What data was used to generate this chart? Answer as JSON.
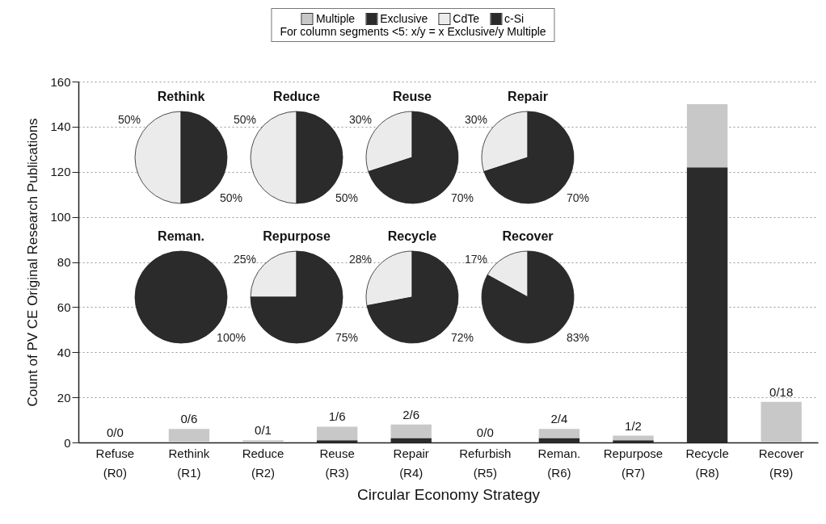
{
  "chart_data": [
    {
      "type": "bar",
      "stacked": true,
      "xlabel": "Circular Economy Strategy",
      "ylabel": "Count of PV CE Original Research Publications",
      "categories": [
        "Refuse (R0)",
        "Rethink (R1)",
        "Reduce (R2)",
        "Reuse (R3)",
        "Repair (R4)",
        "Refurbish (R5)",
        "Reman. (R6)",
        "Repurpose (R7)",
        "Recycle (R8)",
        "Recover (R9)"
      ],
      "series": [
        {
          "name": "Exclusive",
          "color": "#2b2b2b",
          "values": [
            0,
            0,
            0,
            1,
            2,
            0,
            2,
            1,
            122,
            0
          ]
        },
        {
          "name": "Multiple",
          "color": "#c8c8c8",
          "values": [
            0,
            6,
            1,
            6,
            6,
            0,
            4,
            2,
            28,
            18
          ]
        }
      ],
      "ylim": [
        0,
        160
      ],
      "yticks": [
        0,
        20,
        40,
        60,
        80,
        100,
        120,
        140,
        160
      ],
      "grid": "y",
      "legend": "top",
      "annotations": [
        "For column segments <5: x/y = x Exclusive/y Multiple",
        {
          "text": "0/0",
          "x": "Refuse (R0)",
          "y": 0
        },
        {
          "text": "0/6",
          "x": "Rethink (R1)",
          "y": 6
        },
        {
          "text": "0/1",
          "x": "Reduce (R2)",
          "y": 1
        },
        {
          "text": "1/6",
          "x": "Reuse (R3)",
          "y": 7
        },
        {
          "text": "2/6",
          "x": "Repair (R4)",
          "y": 8
        },
        {
          "text": "0/0",
          "x": "Refurbish (R5)",
          "y": 0
        },
        {
          "text": "2/4",
          "x": "Reman. (R6)",
          "y": 6
        },
        {
          "text": "1/2",
          "x": "Repurpose (R7)",
          "y": 3
        },
        {
          "text": "0/18",
          "x": "Recover (R9)",
          "y": 18
        }
      ]
    },
    {
      "type": "pie",
      "title": "Rethink",
      "categories": [
        "CdTe",
        "c-Si"
      ],
      "values": [
        50,
        50
      ],
      "value_labels": [
        "50%",
        "50%"
      ],
      "colors": [
        "#ebebeb",
        "#2b2b2b"
      ],
      "legend": "top"
    },
    {
      "type": "pie",
      "title": "Reduce",
      "categories": [
        null,
        null
      ],
      "values": [
        50,
        50
      ],
      "value_labels": [
        "50%",
        "50%"
      ],
      "colors": [
        "#ebebeb",
        "#2b2b2b"
      ]
    },
    {
      "type": "pie",
      "title": "Reuse",
      "categories": [
        null,
        null
      ],
      "values": [
        30,
        70
      ],
      "value_labels": [
        "30%",
        "70%"
      ],
      "colors": [
        "#ebebeb",
        "#2b2b2b"
      ]
    },
    {
      "type": "pie",
      "title": "Repair",
      "categories": [
        null,
        null
      ],
      "values": [
        30,
        70
      ],
      "value_labels": [
        "30%",
        "70%"
      ],
      "colors": [
        "#ebebeb",
        "#2b2b2b"
      ]
    },
    {
      "type": "pie",
      "title": "Reman.",
      "categories": [
        null,
        null
      ],
      "values": [
        0,
        100
      ],
      "value_labels": [
        null,
        "100%"
      ],
      "colors": [
        "#ebebeb",
        "#2b2b2b"
      ]
    },
    {
      "type": "pie",
      "title": "Repurpose",
      "categories": [
        null,
        null
      ],
      "values": [
        25,
        75
      ],
      "value_labels": [
        "25%",
        "75%"
      ],
      "colors": [
        "#ebebeb",
        "#2b2b2b"
      ]
    },
    {
      "type": "pie",
      "title": "Recycle",
      "categories": [
        null,
        null
      ],
      "values": [
        28,
        72
      ],
      "value_labels": [
        "28%",
        "72%"
      ],
      "colors": [
        "#ebebeb",
        "#2b2b2b"
      ]
    },
    {
      "type": "pie",
      "title": "Recover",
      "categories": [
        null,
        null
      ],
      "values": [
        17,
        83
      ],
      "value_labels": [
        "17%",
        "83%"
      ],
      "colors": [
        "#ebebeb",
        "#2b2b2b"
      ]
    }
  ]
}
